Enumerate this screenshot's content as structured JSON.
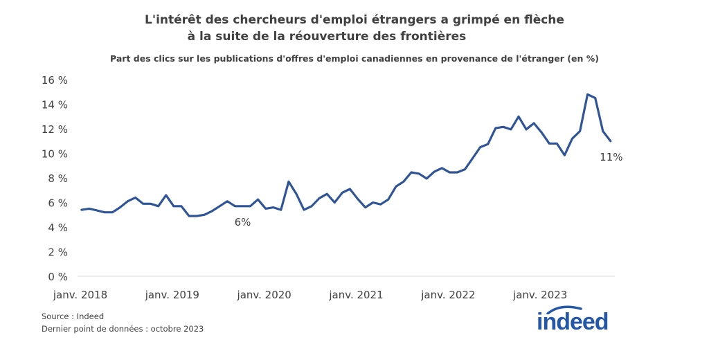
{
  "chart_data": {
    "type": "line",
    "title": "L'intérêt des chercheurs d'emploi étrangers a grimpé en flèche",
    "title_line2": "à la suite de la réouverture des frontières",
    "subtitle": "Part des clics sur les publications d'offres d'emploi canadiennes en provenance de l'étranger (en %)",
    "xlabel": "",
    "ylabel": "",
    "x_start": "2018-01",
    "x_end": "2023-10",
    "x_frequency": "monthly",
    "x_tick_labels": [
      "janv. 2018",
      "janv. 2019",
      "janv. 2020",
      "janv. 2021",
      "janv. 2022",
      "janv. 2023"
    ],
    "y_tick_labels": [
      "0 %",
      "2 %",
      "4 %",
      "6 %",
      "8 %",
      "10 %",
      "12 %",
      "14 %",
      "16 %"
    ],
    "ylim": [
      0,
      16
    ],
    "grid": false,
    "series": [
      {
        "color": "#2f5597",
        "values": [
          5.4,
          5.5,
          5.35,
          5.2,
          5.2,
          5.6,
          6.1,
          6.4,
          5.9,
          5.9,
          5.7,
          6.6,
          5.7,
          5.7,
          4.9,
          4.9,
          5.0,
          5.3,
          5.7,
          6.1,
          5.7,
          5.7,
          5.7,
          6.25,
          5.5,
          5.6,
          5.4,
          7.7,
          6.7,
          5.4,
          5.7,
          6.35,
          6.7,
          6.0,
          6.8,
          7.1,
          6.3,
          5.6,
          6.0,
          5.85,
          6.25,
          7.3,
          7.7,
          8.45,
          8.35,
          7.95,
          8.5,
          8.8,
          8.45,
          8.45,
          8.7,
          9.6,
          10.5,
          10.75,
          12.05,
          12.15,
          11.95,
          13.0,
          11.95,
          12.45,
          11.7,
          10.8,
          10.8,
          9.85,
          11.2,
          11.8,
          14.8,
          14.5,
          11.8,
          11.0
        ]
      }
    ],
    "annotations": [
      {
        "text": "6%",
        "month_index": 21
      },
      {
        "text": "11%",
        "month_index": 69
      }
    ]
  },
  "footer": {
    "source": "Source : Indeed",
    "last_point": "Dernier point de données : octobre 2023"
  },
  "logo": {
    "text": "indeed",
    "color": "#2557a7"
  }
}
